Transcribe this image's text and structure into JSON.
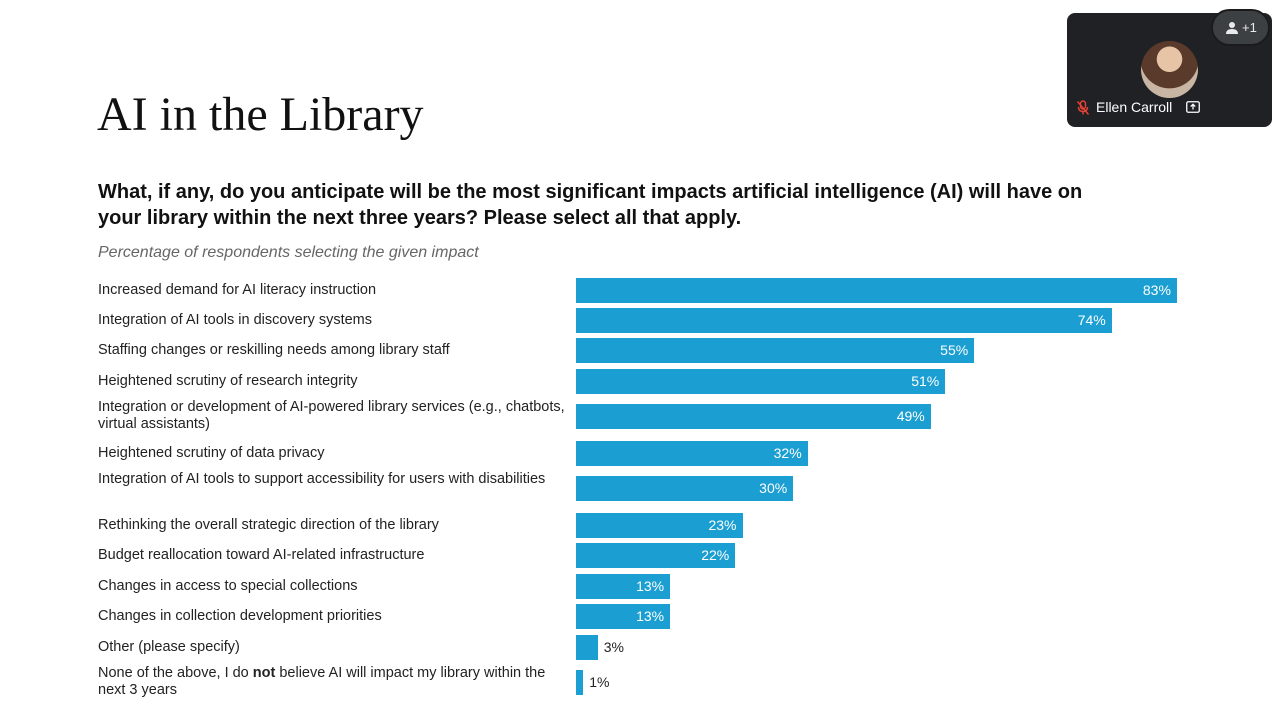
{
  "slide": {
    "title": "AI in the Library",
    "question": "What, if any, do you anticipate will be the most significant impacts artificial intelligence (AI) will have on your library within the next three years? Please select all that apply.",
    "subtitle": "Percentage of respondents selecting the given impact"
  },
  "chart_data": {
    "type": "bar",
    "orientation": "horizontal",
    "categories": [
      "Increased demand for AI literacy instruction",
      "Integration of AI tools in discovery systems",
      "Staffing changes or reskilling needs among library staff",
      "Heightened scrutiny of research integrity",
      "Integration or development of AI-powered library services (e.g., chatbots, virtual assistants)",
      "Heightened scrutiny of data privacy",
      "Integration of AI tools to support accessibility for users with disabilities",
      "Rethinking the overall strategic direction of the library",
      "Budget reallocation toward AI-related infrastructure",
      "Changes in access to special collections",
      "Changes in collection development priorities",
      "Other (please specify)",
      "None of the above, I do not believe AI will impact my library within the next 3 years"
    ],
    "values": [
      83,
      74,
      55,
      51,
      49,
      32,
      30,
      23,
      22,
      13,
      13,
      3,
      1
    ],
    "value_labels": [
      "83%",
      "74%",
      "55%",
      "51%",
      "49%",
      "32%",
      "30%",
      "23%",
      "22%",
      "13%",
      "13%",
      "3%",
      "1%"
    ],
    "emphasis": {
      "index": 12,
      "word": "not"
    },
    "bar_color": "#1b9ed1",
    "grid": false
  },
  "meeting": {
    "participant_name": "Ellen Carroll",
    "more_people_count": "+1",
    "icons": {
      "more_people": "person-icon",
      "mic": "mic-off-icon",
      "present": "present-screen-icon"
    }
  }
}
